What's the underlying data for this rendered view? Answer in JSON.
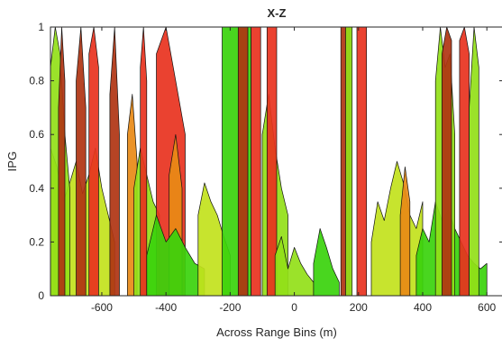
{
  "chart_data": {
    "type": "area",
    "title": "X-Z",
    "xlabel": "Across Range Bins (m)",
    "ylabel": "IPG",
    "xlim": [
      -760,
      650
    ],
    "ylim": [
      0,
      1
    ],
    "xticks": [
      -600,
      -400,
      -200,
      0,
      200,
      400,
      600
    ],
    "xtick_labels": [
      "-600",
      "-400",
      "-200",
      "0",
      "200",
      "400",
      "600"
    ],
    "yticks": [
      0,
      0.2,
      0.4,
      0.6,
      0.8,
      1
    ],
    "ytick_labels": [
      "0",
      "0.2",
      "0.4",
      "0.6",
      "0.8",
      "1"
    ],
    "grid": false,
    "box": true,
    "colormap": "red-yellow-green (IPG)",
    "colors": {
      "red": "#e8321e",
      "dark_red": "#b03412",
      "orange": "#e88a16",
      "yellow_green": "#c2e21c",
      "lime": "#92e018",
      "green": "#3ad20c",
      "bright_green": "#14e614",
      "edge": "#111111",
      "axis": "#262626"
    },
    "series": [
      {
        "color": "yellow_green",
        "x": [
          -760,
          -740,
          -720,
          -700,
          -680,
          -660,
          -640,
          -620,
          -600,
          -580,
          -560
        ],
        "y": [
          0.55,
          0.48,
          0.35,
          0.42,
          0.5,
          0.38,
          0.45,
          0.55,
          0.4,
          0.3,
          0.2
        ]
      },
      {
        "color": "lime",
        "x": [
          -760,
          -745,
          -730,
          -715,
          -700
        ],
        "y": [
          0.85,
          1.0,
          0.9,
          0.6,
          0.4
        ]
      },
      {
        "color": "dark_red",
        "x": [
          -735,
          -725,
          -715
        ],
        "y": [
          0.7,
          1.0,
          0.8
        ]
      },
      {
        "color": "dark_red",
        "x": [
          -680,
          -665,
          -650
        ],
        "y": [
          0.8,
          1.0,
          0.7
        ]
      },
      {
        "color": "red",
        "x": [
          -640,
          -625,
          -610
        ],
        "y": [
          0.9,
          1.0,
          0.85
        ]
      },
      {
        "color": "dark_red",
        "x": [
          -575,
          -560,
          -545
        ],
        "y": [
          0.75,
          1.0,
          0.6
        ]
      },
      {
        "color": "orange",
        "x": [
          -520,
          -505,
          -490
        ],
        "y": [
          0.6,
          0.75,
          0.5
        ]
      },
      {
        "color": "lime",
        "x": [
          -500,
          -480,
          -460,
          -440,
          -420
        ],
        "y": [
          0.4,
          0.55,
          0.45,
          0.35,
          0.3
        ]
      },
      {
        "color": "red",
        "x": [
          -480,
          -470,
          -460
        ],
        "y": [
          0.85,
          1.0,
          0.8
        ]
      },
      {
        "color": "red",
        "x": [
          -430,
          -400,
          -370,
          -340
        ],
        "y": [
          0.9,
          1.0,
          0.8,
          0.6
        ]
      },
      {
        "color": "orange",
        "x": [
          -390,
          -370,
          -350
        ],
        "y": [
          0.45,
          0.6,
          0.4
        ]
      },
      {
        "color": "green",
        "x": [
          -460,
          -430,
          -400,
          -370,
          -340,
          -310,
          -280
        ],
        "y": [
          0.15,
          0.3,
          0.2,
          0.25,
          0.18,
          0.12,
          0.1
        ]
      },
      {
        "color": "yellow_green",
        "x": [
          -300,
          -280,
          -260,
          -240,
          -220,
          -200
        ],
        "y": [
          0.3,
          0.42,
          0.35,
          0.3,
          0.22,
          0.15
        ]
      },
      {
        "color": "green",
        "x": [
          -225,
          -210,
          -195,
          -180,
          -165,
          -150,
          -135
        ],
        "y": [
          1.0,
          1.0,
          1.0,
          1.0,
          1.0,
          1.0,
          1.0
        ]
      },
      {
        "color": "dark_red",
        "x": [
          -175,
          -160,
          -145
        ],
        "y": [
          1.0,
          1.0,
          1.0
        ]
      },
      {
        "color": "red",
        "x": [
          -135,
          -120,
          -105
        ],
        "y": [
          1.0,
          1.0,
          1.0
        ]
      },
      {
        "color": "lime",
        "x": [
          -100,
          -80,
          -60,
          -40,
          -20
        ],
        "y": [
          0.6,
          0.75,
          0.55,
          0.4,
          0.3
        ]
      },
      {
        "color": "red",
        "x": [
          -85,
          -70,
          -55
        ],
        "y": [
          1.0,
          1.0,
          1.0
        ]
      },
      {
        "color": "lime",
        "x": [
          -60,
          -40,
          -20,
          0,
          20,
          40,
          60
        ],
        "y": [
          0.15,
          0.22,
          0.1,
          0.18,
          0.12,
          0.08,
          0.05
        ]
      },
      {
        "color": "green",
        "x": [
          60,
          80,
          100,
          120,
          140
        ],
        "y": [
          0.12,
          0.25,
          0.18,
          0.1,
          0.05
        ]
      },
      {
        "color": "dark_red",
        "x": [
          145,
          160,
          175
        ],
        "y": [
          1.0,
          1.0,
          1.0
        ]
      },
      {
        "color": "lime",
        "x": [
          160,
          170,
          180
        ],
        "y": [
          1.0,
          1.0,
          1.0
        ]
      },
      {
        "color": "red",
        "x": [
          195,
          210,
          225
        ],
        "y": [
          1.0,
          1.0,
          1.0
        ]
      },
      {
        "color": "yellow_green",
        "x": [
          240,
          260,
          280,
          300,
          320,
          340,
          360,
          380,
          400
        ],
        "y": [
          0.2,
          0.35,
          0.28,
          0.4,
          0.5,
          0.42,
          0.3,
          0.25,
          0.35
        ]
      },
      {
        "color": "orange",
        "x": [
          330,
          345,
          360
        ],
        "y": [
          0.3,
          0.48,
          0.35
        ]
      },
      {
        "color": "green",
        "x": [
          380,
          400,
          420,
          440,
          460,
          480,
          500,
          520,
          540,
          560,
          580,
          600
        ],
        "y": [
          0.15,
          0.25,
          0.2,
          0.35,
          0.28,
          0.32,
          0.25,
          0.2,
          0.15,
          0.12,
          0.1,
          0.12
        ]
      },
      {
        "color": "lime",
        "x": [
          440,
          455,
          470,
          485,
          500
        ],
        "y": [
          0.8,
          1.0,
          0.85,
          0.9,
          0.6
        ]
      },
      {
        "color": "dark_red",
        "x": [
          460,
          475,
          490
        ],
        "y": [
          0.9,
          1.0,
          0.95
        ]
      },
      {
        "color": "red",
        "x": [
          515,
          530,
          545
        ],
        "y": [
          0.95,
          1.0,
          0.9
        ]
      },
      {
        "color": "lime",
        "x": [
          545,
          560,
          575
        ],
        "y": [
          0.7,
          1.0,
          0.85
        ]
      }
    ]
  }
}
